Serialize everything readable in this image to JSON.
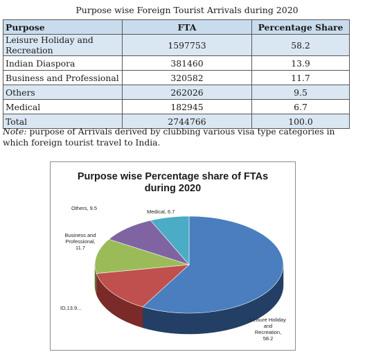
{
  "table": {
    "caption": "Purpose wise Foreign Tourist Arrivals during 2020",
    "headers": [
      "Purpose",
      "FTA",
      "Percentage Share"
    ],
    "rows": [
      {
        "purpose": "Leisure Holiday and Recreation",
        "fta": "1597753",
        "share": "58.2"
      },
      {
        "purpose": "Indian Diaspora",
        "fta": "381460",
        "share": "13.9"
      },
      {
        "purpose": "Business and Professional",
        "fta": "320582",
        "share": "11.7"
      },
      {
        "purpose": "Others",
        "fta": "262026",
        "share": "9.5"
      },
      {
        "purpose": "Medical",
        "fta": "182945",
        "share": "6.7"
      },
      {
        "purpose": "Total",
        "fta": "2744766",
        "share": "100.0"
      }
    ]
  },
  "note": {
    "lead": "Note:",
    "text": " purpose of Arrivals derived by clubbing various visa type categories in which foreign tourist travel to India."
  },
  "chart_data": {
    "type": "pie",
    "title_line1": "Purpose wise Percentage share of FTAs",
    "title_line2": "during 2020",
    "slices": [
      {
        "name": "Leisure Holiday and Recreation",
        "value": 58.2,
        "color": "#4a7ebf",
        "side_color": "#233f66"
      },
      {
        "name": "ID",
        "value": 13.9,
        "color": "#c0504d",
        "side_color": "#7a2a28"
      },
      {
        "name": "Business and Professional",
        "value": 11.7,
        "color": "#9bbb59",
        "side_color": "#5e7532"
      },
      {
        "name": "Others",
        "value": 9.5,
        "color": "#8064a2",
        "side_color": "#4b3a62"
      },
      {
        "name": "Medical",
        "value": 6.7,
        "color": "#4bacc6",
        "side_color": "#2b6a7a"
      }
    ],
    "labels": {
      "leisure": [
        "Leisure Holiday",
        "and",
        "Recreation,",
        "58.2"
      ],
      "id": [
        "ID,13.9..."
      ],
      "business": [
        "Business and",
        "Professional,",
        "11.7"
      ],
      "others": [
        "Others, 9.5"
      ],
      "medical": [
        "Medical, 6.7"
      ]
    }
  }
}
